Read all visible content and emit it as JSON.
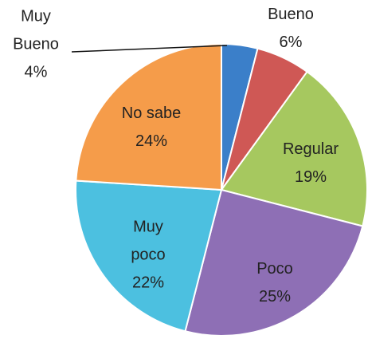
{
  "chart_data": {
    "type": "pie",
    "categories": [
      "Muy Bueno",
      "Bueno",
      "Regular",
      "Poco",
      "Muy poco",
      "No sabe"
    ],
    "values": [
      4,
      6,
      19,
      25,
      22,
      24
    ],
    "value_labels": [
      "4%",
      "6%",
      "19%",
      "25%",
      "22%",
      "24%"
    ],
    "colors": [
      "#3b7fc9",
      "#cf5855",
      "#a6c85f",
      "#8e6fb5",
      "#4cc0e0",
      "#f59c4a"
    ]
  }
}
